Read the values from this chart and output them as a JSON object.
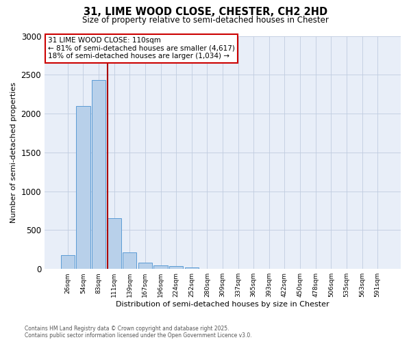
{
  "title1": "31, LIME WOOD CLOSE, CHESTER, CH2 2HD",
  "title2": "Size of property relative to semi-detached houses in Chester",
  "xlabel": "Distribution of semi-detached houses by size in Chester",
  "ylabel": "Number of semi-detached properties",
  "bar_labels": [
    "26sqm",
    "54sqm",
    "83sqm",
    "111sqm",
    "139sqm",
    "167sqm",
    "196sqm",
    "224sqm",
    "252sqm",
    "280sqm",
    "309sqm",
    "337sqm",
    "365sqm",
    "393sqm",
    "422sqm",
    "450sqm",
    "478sqm",
    "506sqm",
    "535sqm",
    "563sqm",
    "591sqm"
  ],
  "bar_values": [
    175,
    2100,
    2430,
    650,
    215,
    85,
    45,
    35,
    20,
    0,
    0,
    0,
    0,
    0,
    0,
    0,
    0,
    0,
    0,
    0,
    0
  ],
  "bar_color": "#b8d0ea",
  "bar_edge_color": "#5b9bd5",
  "property_label": "31 LIME WOOD CLOSE: 110sqm",
  "smaller_text": "← 81% of semi-detached houses are smaller (4,617)",
  "larger_text": "18% of semi-detached houses are larger (1,034) →",
  "line_color": "#aa0000",
  "box_edge_color": "#cc0000",
  "ylim": [
    0,
    3000
  ],
  "yticks": [
    0,
    500,
    1000,
    1500,
    2000,
    2500,
    3000
  ],
  "footnote1": "Contains HM Land Registry data © Crown copyright and database right 2025.",
  "footnote2": "Contains public sector information licensed under the Open Government Licence v3.0.",
  "bg_color": "#e8eef8",
  "grid_color": "#c0cce0"
}
